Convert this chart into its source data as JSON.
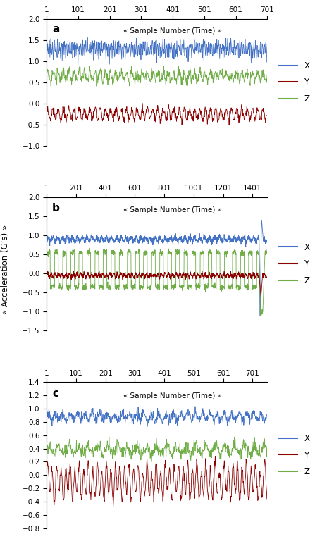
{
  "panel_a": {
    "label": "a",
    "x_range": [
      1,
      701
    ],
    "x_ticks": [
      1,
      101,
      201,
      301,
      401,
      501,
      601,
      701
    ],
    "y_lim": [
      -1,
      2
    ],
    "y_ticks": [
      -1,
      -0.5,
      0,
      0.5,
      1,
      1.5,
      2
    ],
    "title": "« Sample Number (Time) »",
    "n_samples": 700
  },
  "panel_b": {
    "label": "b",
    "x_range": [
      1,
      1501
    ],
    "x_ticks": [
      1,
      201,
      401,
      601,
      801,
      1001,
      1201,
      1401
    ],
    "y_lim": [
      -1.5,
      2
    ],
    "y_ticks": [
      -1.5,
      -1,
      -0.5,
      0,
      0.5,
      1,
      1.5,
      2
    ],
    "title": "« Sample Number (Time) »",
    "n_samples": 1500
  },
  "panel_c": {
    "label": "c",
    "x_range": [
      1,
      751
    ],
    "x_ticks": [
      1,
      101,
      201,
      301,
      401,
      501,
      601,
      701
    ],
    "y_lim": [
      -0.8,
      1.4
    ],
    "y_ticks": [
      -0.8,
      -0.6,
      -0.4,
      -0.2,
      0,
      0.2,
      0.4,
      0.6,
      0.8,
      1.0,
      1.2,
      1.4
    ],
    "title": "« Sample Number (Time) »",
    "n_samples": 750
  },
  "colors": {
    "X": "#4472C4",
    "Y": "#8B0000",
    "Z": "#70AD47"
  },
  "ylabel": "« Acceleration (G’s) »",
  "linewidth": 0.6
}
